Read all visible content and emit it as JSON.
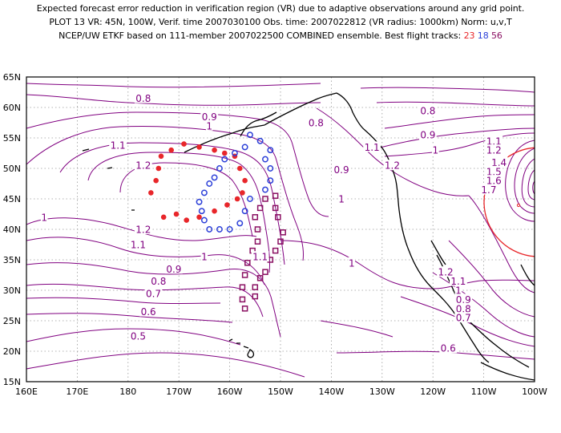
{
  "header": {
    "line1": "Expected forecast error reduction in verification region (VR) due to adaptive observations around any grid point.",
    "line2": "PLOT 13 VR: 45N, 100W, Verif. time 2007030100 Obs. time: 2007022812 (VR radius: 1000km) Norm: u,v,T",
    "line3_prefix": "NCEP/UW ETKF based on 111-member 2007022500 COMBINED ensemble.  Best flight tracks: ",
    "track_a": "23",
    "track_b": "18",
    "track_c": "56"
  },
  "axes": {
    "lon_labels": [
      "160E",
      "170E",
      "180",
      "170W",
      "160W",
      "150W",
      "140W",
      "130W",
      "120W",
      "110W",
      "100W"
    ],
    "lat_labels": [
      "65N",
      "60N",
      "55N",
      "50N",
      "45N",
      "40N",
      "35N",
      "30N",
      "25N",
      "20N",
      "15N"
    ]
  },
  "contour_labels": [
    {
      "text": "0.8",
      "lon": 183,
      "lat": 61.5
    },
    {
      "text": "0.9",
      "lon": 196,
      "lat": 58.5
    },
    {
      "text": "1",
      "lon": 196,
      "lat": 57
    },
    {
      "text": "1.1",
      "lon": 178,
      "lat": 53.8
    },
    {
      "text": "1.2",
      "lon": 183,
      "lat": 50.5
    },
    {
      "text": "0.8",
      "lon": 217,
      "lat": 57.5
    },
    {
      "text": "0.9",
      "lon": 222,
      "lat": 49.8
    },
    {
      "text": "1.1",
      "lon": 228,
      "lat": 53.5
    },
    {
      "text": "1.2",
      "lon": 232,
      "lat": 50.5
    },
    {
      "text": "0.8",
      "lon": 239,
      "lat": 59.5
    },
    {
      "text": "0.9",
      "lon": 239,
      "lat": 55.5
    },
    {
      "text": "1",
      "lon": 240.5,
      "lat": 53
    },
    {
      "text": "1.1",
      "lon": 252,
      "lat": 54.5
    },
    {
      "text": "1.2",
      "lon": 252,
      "lat": 53
    },
    {
      "text": "1.4",
      "lon": 253,
      "lat": 51
    },
    {
      "text": "1.5",
      "lon": 252,
      "lat": 49.5
    },
    {
      "text": "1.6",
      "lon": 252,
      "lat": 48
    },
    {
      "text": "1.7",
      "lon": 251,
      "lat": 46.5
    },
    {
      "text": "1",
      "lon": 163.5,
      "lat": 42
    },
    {
      "text": "1",
      "lon": 222,
      "lat": 45
    },
    {
      "text": "1.2",
      "lon": 183,
      "lat": 40
    },
    {
      "text": "1.1",
      "lon": 182,
      "lat": 37.5
    },
    {
      "text": "1",
      "lon": 195,
      "lat": 35.5
    },
    {
      "text": "1.1",
      "lon": 206,
      "lat": 35.5
    },
    {
      "text": "0.9",
      "lon": 189,
      "lat": 33.5
    },
    {
      "text": "0.8",
      "lon": 186,
      "lat": 31.5
    },
    {
      "text": "0.7",
      "lon": 185,
      "lat": 29.5
    },
    {
      "text": "0.6",
      "lon": 184,
      "lat": 26.5
    },
    {
      "text": "0.5",
      "lon": 182,
      "lat": 22.5
    },
    {
      "text": "1",
      "lon": 224,
      "lat": 34.5
    },
    {
      "text": "1.2",
      "lon": 242.5,
      "lat": 33
    },
    {
      "text": "1.1",
      "lon": 245,
      "lat": 31.5
    },
    {
      "text": "1",
      "lon": 245,
      "lat": 30
    },
    {
      "text": "0.9",
      "lon": 246,
      "lat": 28.5
    },
    {
      "text": "0.8",
      "lon": 246,
      "lat": 27
    },
    {
      "text": "0.7",
      "lon": 246,
      "lat": 25.5
    },
    {
      "text": "0.6",
      "lon": 243,
      "lat": 20.5
    }
  ],
  "flight_tracks": [
    {
      "name": "23",
      "color": "#e8262a",
      "marker": "dot",
      "points": [
        [
          184.5,
          46
        ],
        [
          185.5,
          48
        ],
        [
          186,
          50
        ],
        [
          186.5,
          52
        ],
        [
          188.5,
          53
        ],
        [
          191,
          54
        ],
        [
          194,
          53.5
        ],
        [
          197,
          53
        ],
        [
          199,
          52.5
        ],
        [
          201,
          52
        ],
        [
          202,
          50
        ],
        [
          203,
          48
        ],
        [
          202.5,
          46
        ],
        [
          201.5,
          45
        ],
        [
          199.5,
          44
        ],
        [
          197,
          43
        ],
        [
          194,
          42
        ],
        [
          191.5,
          41.5
        ],
        [
          189.5,
          42.5
        ],
        [
          187,
          42
        ]
      ]
    },
    {
      "name": "18",
      "color": "#2b3fd8",
      "marker": "ring",
      "points": [
        [
          204,
          55.5
        ],
        [
          206,
          54.5
        ],
        [
          208,
          53
        ],
        [
          207,
          51.5
        ],
        [
          208,
          50
        ],
        [
          208,
          48
        ],
        [
          207,
          46.5
        ],
        [
          204,
          45
        ],
        [
          203,
          43
        ],
        [
          202,
          41
        ],
        [
          200,
          40
        ],
        [
          198,
          40
        ],
        [
          196,
          40
        ],
        [
          195,
          41.5
        ],
        [
          194.5,
          43
        ],
        [
          194,
          44.5
        ],
        [
          195,
          46
        ],
        [
          196,
          47.5
        ],
        [
          197,
          48.5
        ],
        [
          198,
          50
        ],
        [
          199,
          51.5
        ],
        [
          201,
          52.5
        ],
        [
          203,
          53.5
        ]
      ]
    },
    {
      "name": "56",
      "color": "#8a1062",
      "marker": "square",
      "points": [
        [
          209,
          45.5
        ],
        [
          207,
          45
        ],
        [
          206,
          43.5
        ],
        [
          205,
          42
        ],
        [
          205.5,
          40
        ],
        [
          205.5,
          38
        ],
        [
          204.5,
          36.5
        ],
        [
          203.5,
          34.5
        ],
        [
          203,
          32.5
        ],
        [
          202.5,
          30.5
        ],
        [
          202.5,
          28.5
        ],
        [
          203,
          27
        ],
        [
          205,
          29
        ],
        [
          205,
          30.5
        ],
        [
          206,
          32
        ],
        [
          207,
          33
        ],
        [
          208,
          35
        ],
        [
          209,
          36.5
        ],
        [
          210,
          38
        ],
        [
          210.5,
          39.5
        ],
        [
          209.5,
          42
        ],
        [
          209,
          43.5
        ]
      ]
    }
  ],
  "verification_circle": {
    "lon": 260,
    "lat": 45
  },
  "colors": {
    "contour": "#800080",
    "grid": "#9a9a9a",
    "land": "#000000",
    "vr": "#e8262a"
  }
}
